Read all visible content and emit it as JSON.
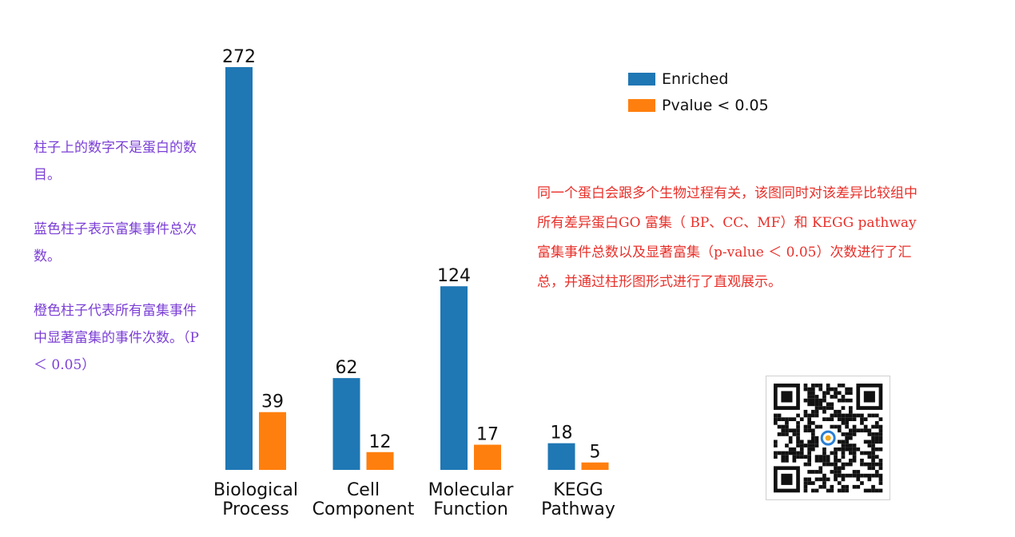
{
  "chart_data": {
    "type": "bar",
    "categories": [
      "Biological\nProcess",
      "Cell\nComponent",
      "Molecular\nFunction",
      "KEGG\nPathway"
    ],
    "series": [
      {
        "name": "Enriched",
        "values": [
          272,
          62,
          124,
          18
        ],
        "color": "#1f77b4"
      },
      {
        "name": "Pvalue < 0.05",
        "values": [
          39,
          12,
          17,
          5
        ],
        "color": "#ff7f0e"
      }
    ],
    "ylim": [
      0,
      272
    ],
    "grid": false,
    "legend": "top-right"
  },
  "annotations": {
    "left_notes": [
      "柱子上的数字不是蛋白的数目。",
      "蓝色柱子表示富集事件总次数。",
      "橙色柱子代表所有富集事件中显著富集的事件次数。（P ＜ 0.05）"
    ],
    "right_note": "同一个蛋白会跟多个生物过程有关，该图同时对该差异比较组中所有差异蛋白GO 富集（ BP、CC、MF）和 KEGG pathway 富集事件总数以及显著富集（p-value ＜ 0.05）次数进行了汇总，并通过柱形图形式进行了直观展示。"
  },
  "qr_code": {
    "icon": "qr-code-icon"
  }
}
